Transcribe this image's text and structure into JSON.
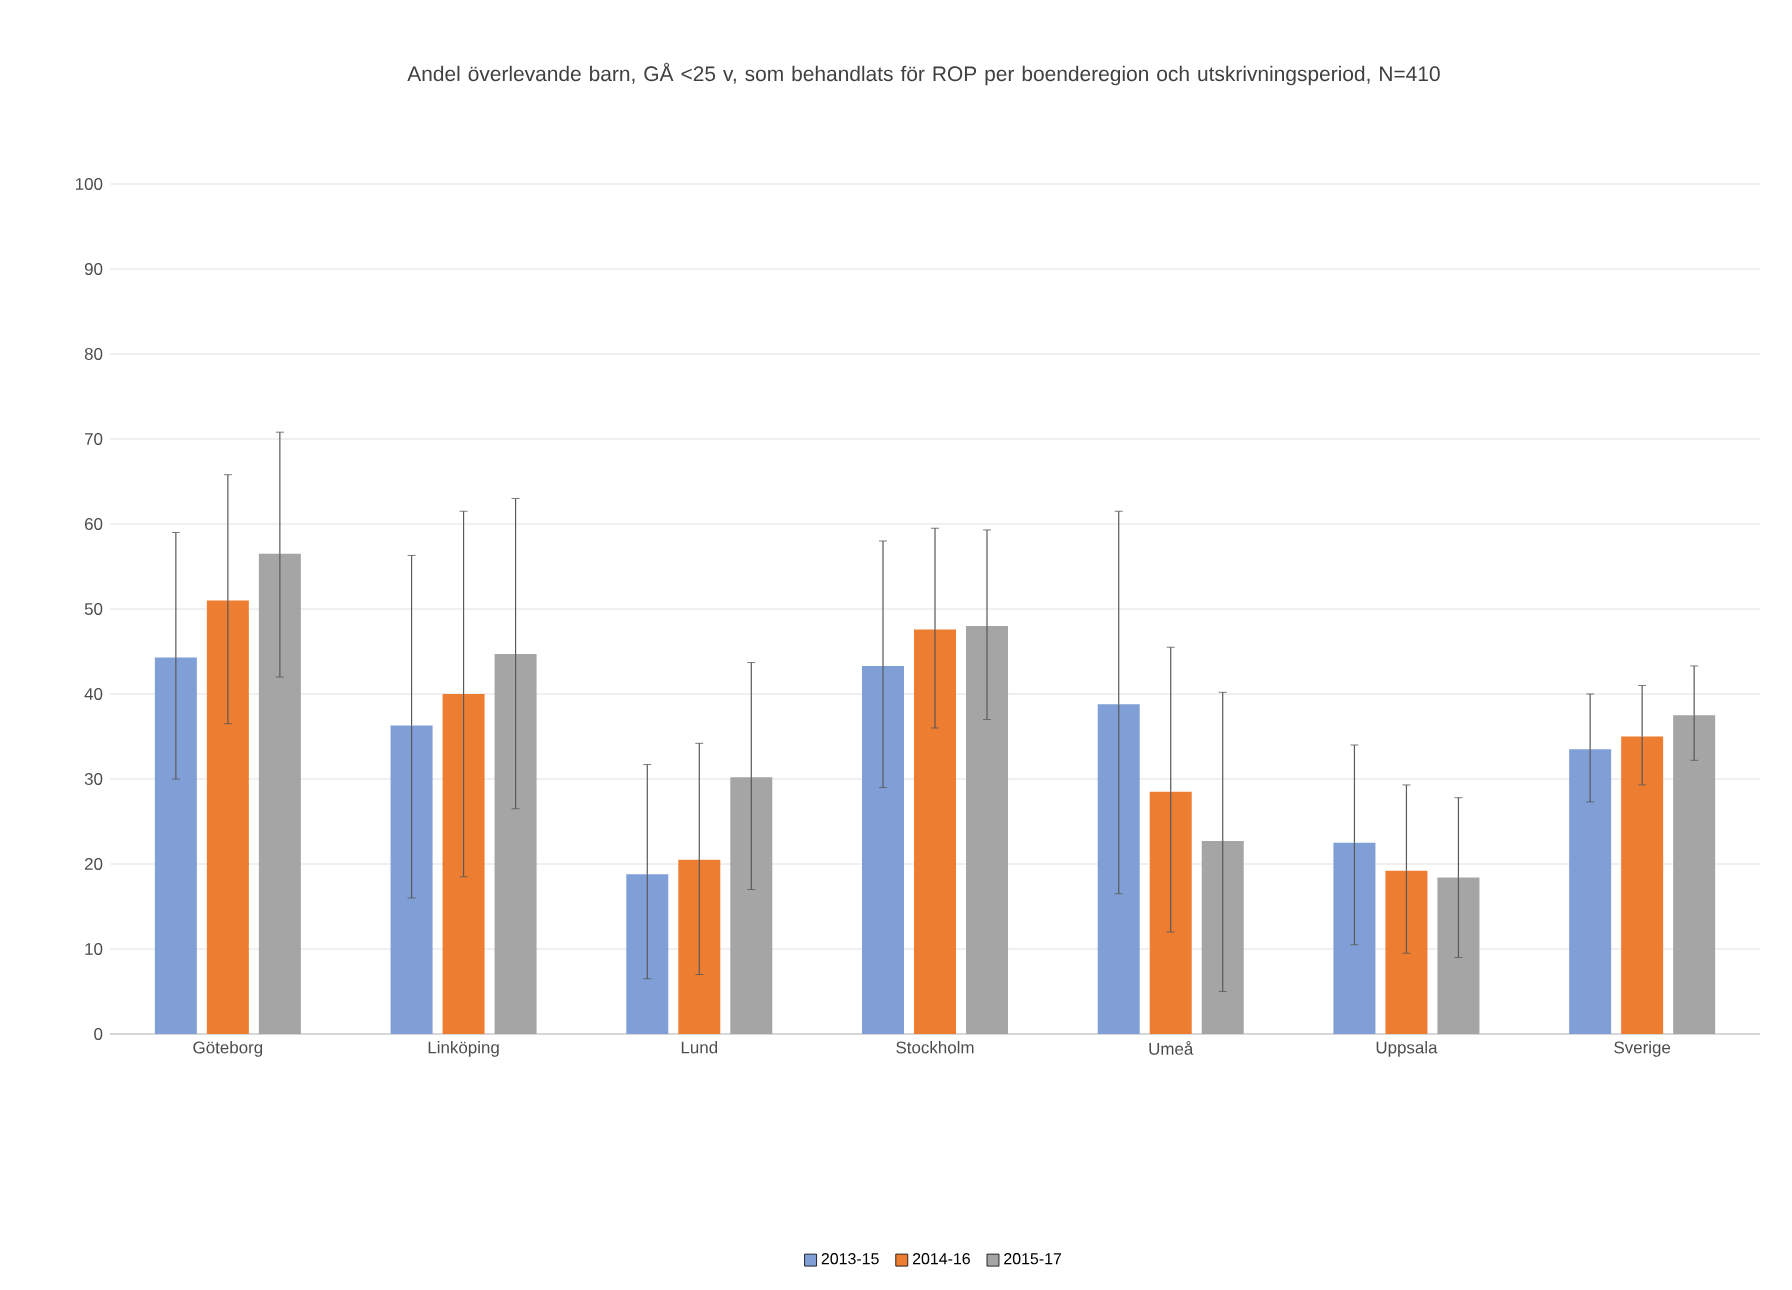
{
  "chart_data": {
    "type": "bar",
    "title": "Andel överlevande barn, GÅ <25 v, som behandlats för ROP per boenderegion och utskrivningsperiod, N=410",
    "categories": [
      "Göteborg",
      "Linköping",
      "Lund",
      "Stockholm",
      "Umeå",
      "Uppsala",
      "Sverige"
    ],
    "series": [
      {
        "name": "2013-15",
        "color": "#7f9fd6",
        "values": [
          44.3,
          36.3,
          18.8,
          43.3,
          38.8,
          22.5,
          33.5
        ],
        "errors": [
          [
            30,
            59
          ],
          [
            16,
            56.3
          ],
          [
            6.5,
            31.7
          ],
          [
            29,
            58
          ],
          [
            16.5,
            61.5
          ],
          [
            10.5,
            34
          ],
          [
            27.3,
            40
          ]
        ]
      },
      {
        "name": "2014-16",
        "color": "#ed7d31",
        "values": [
          51,
          40,
          20.5,
          47.6,
          28.5,
          19.2,
          35
        ],
        "errors": [
          [
            36.5,
            65.8
          ],
          [
            18.5,
            61.5
          ],
          [
            7,
            34.2
          ],
          [
            36,
            59.5
          ],
          [
            12,
            45.5
          ],
          [
            9.5,
            29.3
          ],
          [
            29.3,
            41
          ]
        ]
      },
      {
        "name": "2015-17",
        "color": "#a5a5a5",
        "values": [
          56.5,
          44.7,
          30.2,
          48,
          22.7,
          18.4,
          37.5
        ],
        "errors": [
          [
            42,
            70.8
          ],
          [
            26.5,
            63
          ],
          [
            17,
            43.7
          ],
          [
            37,
            59.3
          ],
          [
            5,
            40.2
          ],
          [
            9,
            27.8
          ],
          [
            32.2,
            43.3
          ]
        ]
      }
    ],
    "ylim": [
      0,
      100
    ],
    "yticks": [
      0,
      10,
      20,
      30,
      40,
      50,
      60,
      70,
      80,
      90,
      100
    ],
    "grid": "y",
    "legend": "bottom"
  }
}
